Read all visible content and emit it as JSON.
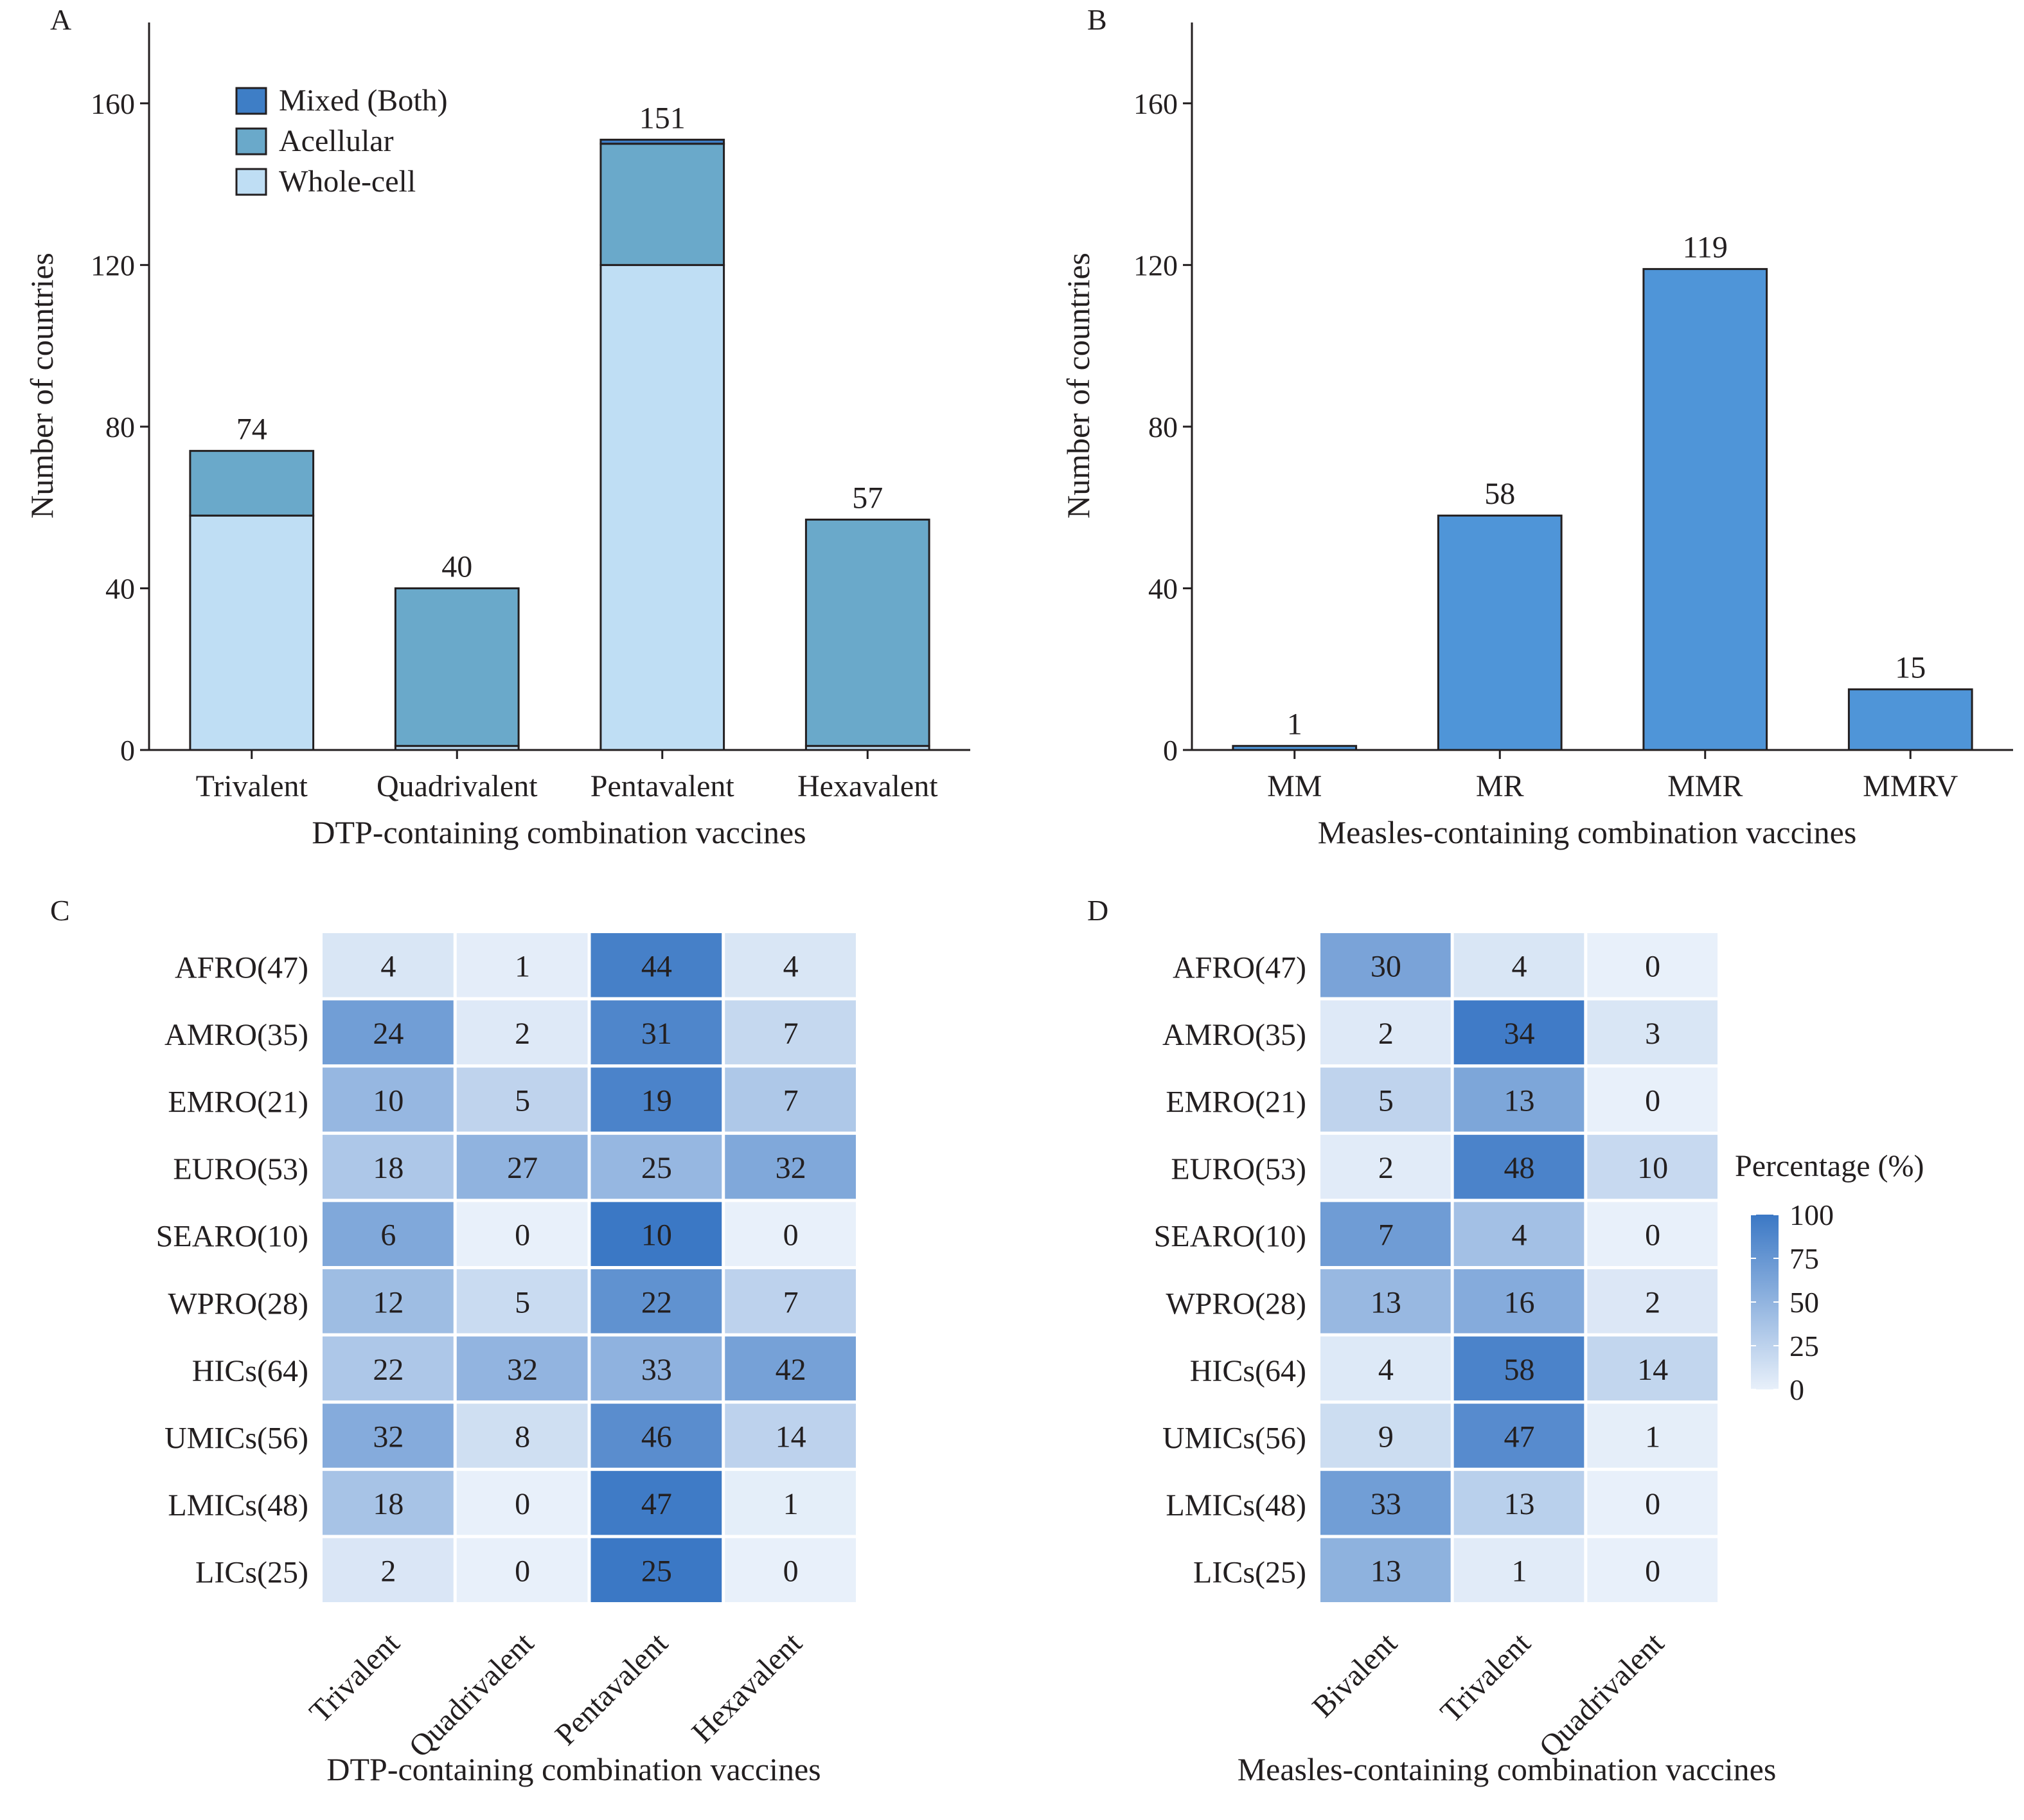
{
  "chart_data": [
    {
      "panel": "A",
      "type": "bar",
      "stacked": true,
      "categories": [
        "Trivalent",
        "Quadrivalent",
        "Pentavalent",
        "Hexavalent"
      ],
      "series": [
        {
          "name": "Whole-cell",
          "values": [
            58,
            1,
            120,
            1
          ],
          "color": "#bfdef4"
        },
        {
          "name": "Acellular",
          "values": [
            16,
            39,
            30,
            56
          ],
          "color": "#6aa9ca"
        },
        {
          "name": "Mixed (Both)",
          "values": [
            0,
            0,
            1,
            0
          ],
          "color": "#3e7ec6"
        }
      ],
      "totals": [
        74,
        40,
        151,
        57
      ],
      "total_labels": [
        "74",
        "40",
        "151",
        "57"
      ],
      "legend_order": [
        "Mixed (Both)",
        "Acellular",
        "Whole-cell"
      ],
      "legend_position": "top-left",
      "xlabel": "DTP-containing combination vaccines",
      "ylabel": "Number of countries",
      "ylim": [
        0,
        180
      ],
      "yticks": [
        0,
        40,
        80,
        120,
        160
      ],
      "ytick_labels": [
        "0",
        "40",
        "80",
        "120",
        "160"
      ],
      "grid": false
    },
    {
      "panel": "B",
      "type": "bar",
      "categories": [
        "MM",
        "MR",
        "MMR",
        "MMRV"
      ],
      "values": [
        1,
        58,
        119,
        15
      ],
      "value_labels": [
        "1",
        "58",
        "119",
        "15"
      ],
      "color": "#4f95d8",
      "xlabel": "Measles-containing combination vaccines",
      "ylabel": "Number of countries",
      "ylim": [
        0,
        180
      ],
      "yticks": [
        0,
        40,
        80,
        120,
        160
      ],
      "ytick_labels": [
        "0",
        "40",
        "80",
        "120",
        "160"
      ],
      "grid": false
    },
    {
      "panel": "C",
      "type": "heatmap",
      "rows": [
        "AFRO(47)",
        "AMRO(35)",
        "EMRO(21)",
        "EURO(53)",
        "SEARO(10)",
        "WPRO(28)",
        "HICs(64)",
        "UMICs(56)",
        "LMICs(48)",
        "LICs(25)"
      ],
      "row_totals": [
        47,
        35,
        21,
        53,
        10,
        28,
        64,
        56,
        48,
        25
      ],
      "columns": [
        "Trivalent",
        "Quadrivalent",
        "Pentavalent",
        "Hexavalent"
      ],
      "values": [
        [
          4,
          1,
          44,
          4
        ],
        [
          24,
          2,
          31,
          7
        ],
        [
          10,
          5,
          19,
          7
        ],
        [
          18,
          27,
          25,
          32
        ],
        [
          6,
          0,
          10,
          0
        ],
        [
          12,
          5,
          22,
          7
        ],
        [
          22,
          32,
          33,
          42
        ],
        [
          32,
          8,
          46,
          14
        ],
        [
          18,
          0,
          47,
          1
        ],
        [
          2,
          0,
          25,
          0
        ]
      ],
      "color_metric": "percentage of row total",
      "xlabel": "DTP-containing combination vaccines"
    },
    {
      "panel": "D",
      "type": "heatmap",
      "rows": [
        "AFRO(47)",
        "AMRO(35)",
        "EMRO(21)",
        "EURO(53)",
        "SEARO(10)",
        "WPRO(28)",
        "HICs(64)",
        "UMICs(56)",
        "LMICs(48)",
        "LICs(25)"
      ],
      "row_totals": [
        47,
        35,
        21,
        53,
        10,
        28,
        64,
        56,
        48,
        25
      ],
      "columns": [
        "Bivalent",
        "Trivalent",
        "Quadrivalent"
      ],
      "values": [
        [
          30,
          4,
          0
        ],
        [
          2,
          34,
          3
        ],
        [
          5,
          13,
          0
        ],
        [
          2,
          48,
          10
        ],
        [
          7,
          4,
          0
        ],
        [
          13,
          16,
          2
        ],
        [
          4,
          58,
          14
        ],
        [
          9,
          47,
          1
        ],
        [
          33,
          13,
          0
        ],
        [
          13,
          1,
          0
        ]
      ],
      "color_metric": "percentage of row total",
      "xlabel": "Measles-containing combination vaccines",
      "colorbar": {
        "title": "Percentage (%)",
        "range": [
          0,
          100
        ],
        "ticks": [
          0,
          25,
          50,
          75,
          100
        ],
        "tick_labels": [
          "0",
          "25",
          "50",
          "75",
          "100"
        ],
        "color_low": "#e8f0fa",
        "color_high": "#3b78c5",
        "position": "right"
      }
    }
  ],
  "panel_letters": [
    "A",
    "B",
    "C",
    "D"
  ]
}
